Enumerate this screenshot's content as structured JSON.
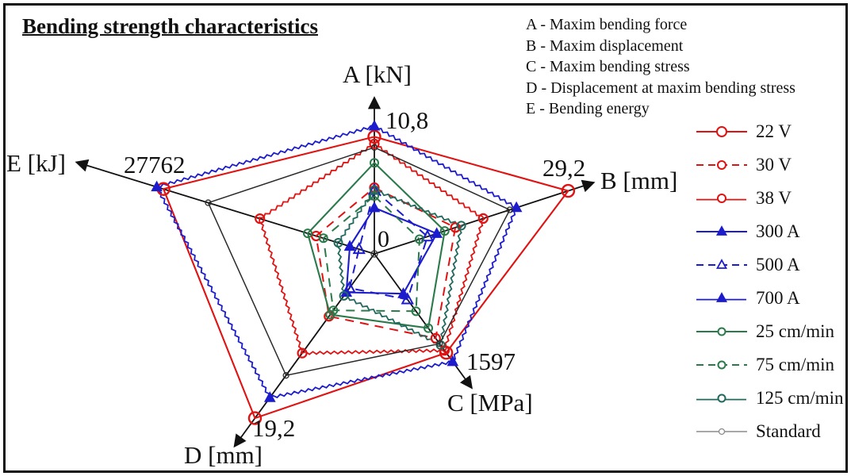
{
  "title": "Bending strength characteristics",
  "parameters": [
    "A - Maxim bending force",
    "B - Maxim displacement",
    "C - Maxim bending stress",
    "D - Displacement at maxim bending stress",
    "E - Bending energy"
  ],
  "chart_data": {
    "type": "radar",
    "title": "Bending strength characteristics",
    "origin_label": "0",
    "grid": "off",
    "legend_position": "right",
    "axes": [
      {
        "id": "A",
        "label": "A [kN]",
        "unit": "kN",
        "max_value": 10.8,
        "max_label": "10,8"
      },
      {
        "id": "B",
        "label": "B [mm]",
        "unit": "mm",
        "max_value": 29.2,
        "max_label": "29,2"
      },
      {
        "id": "C",
        "label": "C [MPa]",
        "unit": "MPa",
        "max_value": 1597,
        "max_label": "1597"
      },
      {
        "id": "D",
        "label": "D [mm]",
        "unit": "mm",
        "max_value": 19.2,
        "max_label": "19,2"
      },
      {
        "id": "E",
        "label": "E [kJ]",
        "unit": "kJ",
        "max_value": 27762,
        "max_label": "27762"
      }
    ],
    "series": [
      {
        "name": "22 V",
        "color": "#e11212",
        "line": "solid",
        "marker": "circle-open-large",
        "values": [
          9.9,
          29.2,
          1465,
          19.2,
          26900
        ]
      },
      {
        "name": "30 V",
        "color": "#e11212",
        "line": "dashed",
        "marker": "circle-open",
        "values": [
          5.6,
          12.2,
          1250,
          7.3,
          7430
        ]
      },
      {
        "name": "38 V",
        "color": "#e11212",
        "line": "zigzag",
        "marker": "circle-open",
        "values": [
          9.3,
          16.4,
          1430,
          11.6,
          14600
        ]
      },
      {
        "name": "300 A",
        "color": "#1c1ccd",
        "line": "solid",
        "marker": "triangle-filled",
        "values": [
          3.9,
          9.4,
          590,
          4.5,
          3130
        ]
      },
      {
        "name": "500 A",
        "color": "#1c1ccd",
        "line": "dashed",
        "marker": "triangle-open",
        "values": [
          5.4,
          8.0,
          675,
          4.0,
          1950
        ]
      },
      {
        "name": "700 A",
        "color": "#1c1ccd",
        "line": "zigzag",
        "marker": "triangle-filled",
        "values": [
          10.8,
          21.4,
          1597,
          16.8,
          27762
        ]
      },
      {
        "name": "25 cm/min",
        "color": "#2b7a4b",
        "line": "solid",
        "marker": "circle-open-small",
        "values": [
          7.7,
          10.6,
          1100,
          7.1,
          8500
        ]
      },
      {
        "name": "75 cm/min",
        "color": "#2b7a4b",
        "line": "dashed",
        "marker": "circle-open-small",
        "values": [
          4.9,
          6.8,
          850,
          6.6,
          6500
        ]
      },
      {
        "name": "125 cm/min",
        "color": "#20695c",
        "line": "zigzag",
        "marker": "circle-open-small",
        "values": [
          5.4,
          13.1,
          1350,
          4.9,
          4600
        ]
      },
      {
        "name": "Standard",
        "color": "#2b2b2b",
        "legend_color": "#8c8c8c",
        "line": "solid-thin",
        "marker": "circle-open-tiny",
        "values": [
          9.0,
          20.4,
          1330,
          14.2,
          21200
        ]
      }
    ]
  }
}
